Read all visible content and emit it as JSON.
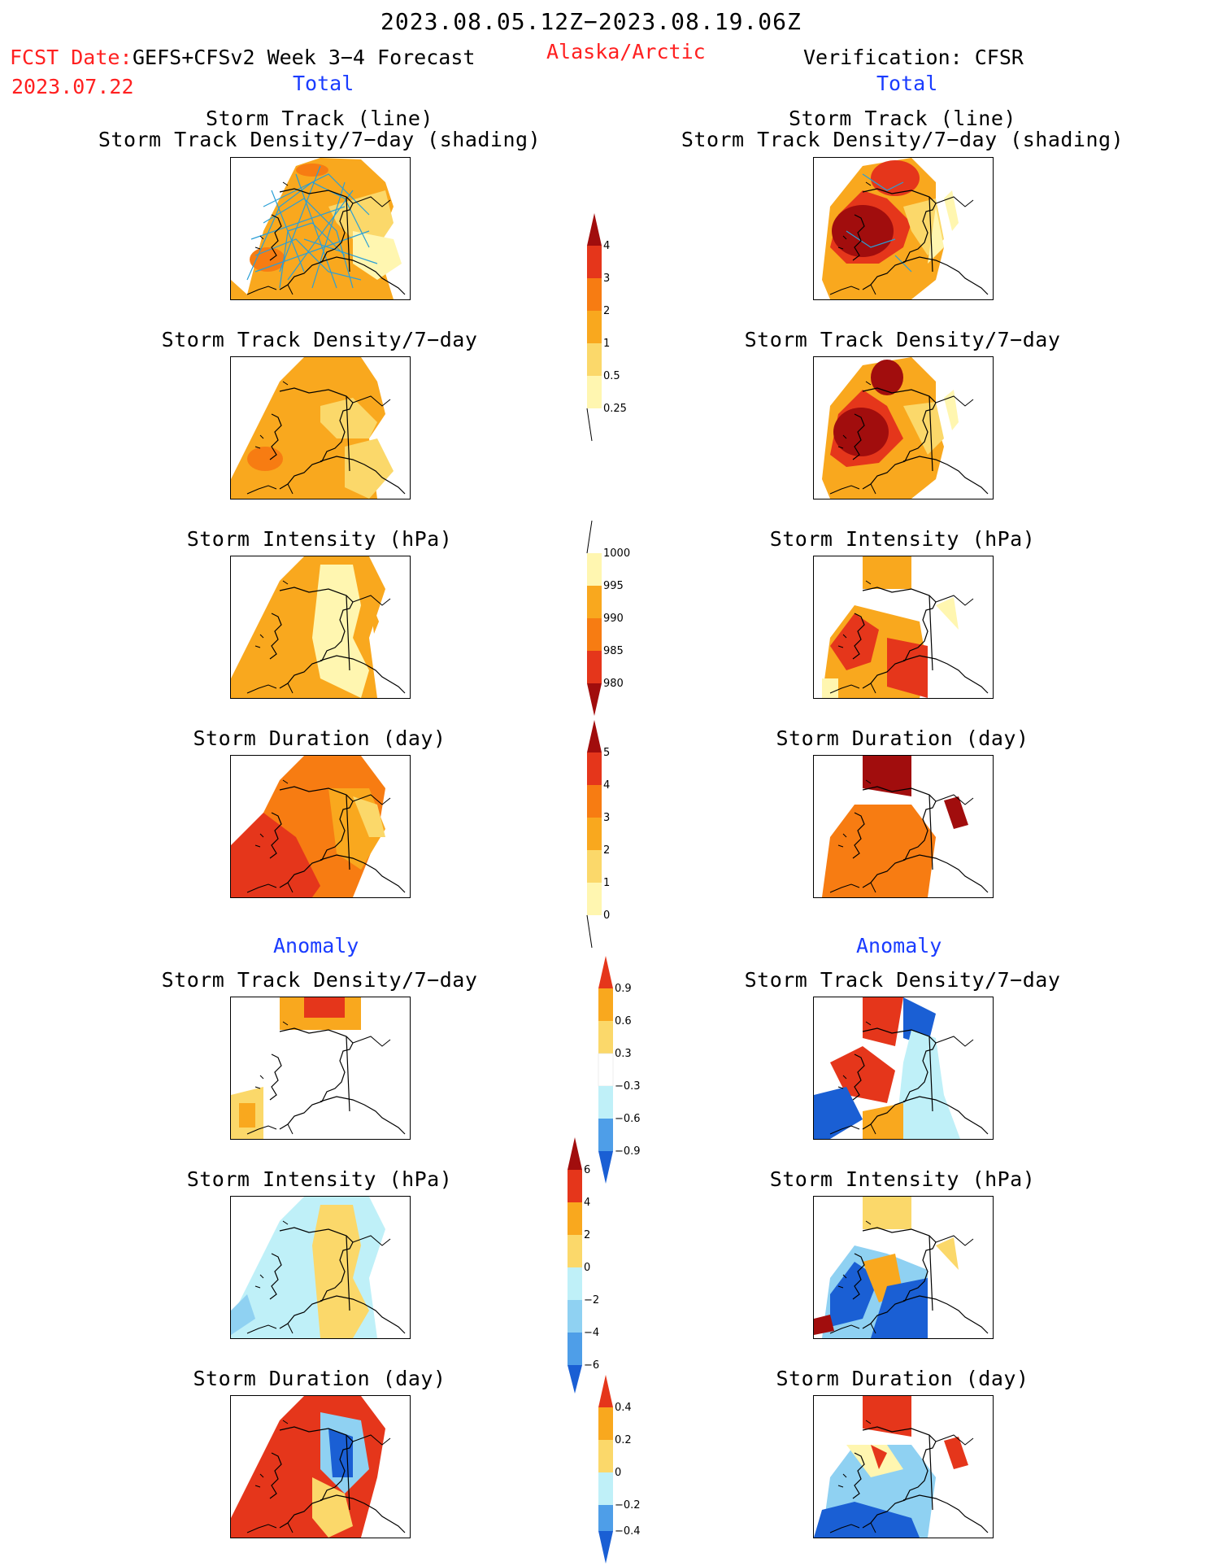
{
  "header": {
    "period": "2023.08.05.12Z−2023.08.19.06Z",
    "fcst_label": "FCST Date:",
    "model": "GEFS+CFSv2 Week 3−4 Forecast",
    "region": "Alaska/Arctic",
    "verification": "Verification: CFSR",
    "fcst_date": "2023.07.22",
    "left_total": "Total",
    "right_total": "Total",
    "left_anomaly": "Anomaly",
    "right_anomaly": "Anomaly"
  },
  "panels": {
    "track_line": "Storm Track (line)",
    "track_shading": "Storm Track Density/7−day (shading)",
    "density": "Storm Track Density/7−day",
    "intensity": "Storm Intensity (hPa)",
    "duration": "Storm Duration (day)"
  },
  "colorbars": {
    "density": [
      "4",
      "3",
      "2",
      "1",
      "0.5",
      "0.25"
    ],
    "intensity": [
      "1000",
      "995",
      "990",
      "985",
      "980"
    ],
    "duration": [
      "5",
      "4",
      "3",
      "2",
      "1",
      "0"
    ],
    "density_anom": [
      "0.9",
      "0.6",
      "0.3",
      "−0.3",
      "−0.6",
      "−0.9"
    ],
    "intensity_anom": [
      "6",
      "4",
      "2",
      "0",
      "−2",
      "−4",
      "−6"
    ],
    "duration_anom": [
      "0.4",
      "0.2",
      "0",
      "−0.2",
      "−0.4"
    ]
  },
  "colors": {
    "c1": "#fff6b0",
    "c2": "#fbd86a",
    "c3": "#f9a81e",
    "c4": "#f77c12",
    "c5": "#e5361b",
    "c6": "#a10d0d",
    "b1": "#bff0f8",
    "b2": "#8fd1f2",
    "b3": "#4e9ee8",
    "b4": "#1a5fd4",
    "border": "#000000",
    "track": "#2a9fd6"
  }
}
